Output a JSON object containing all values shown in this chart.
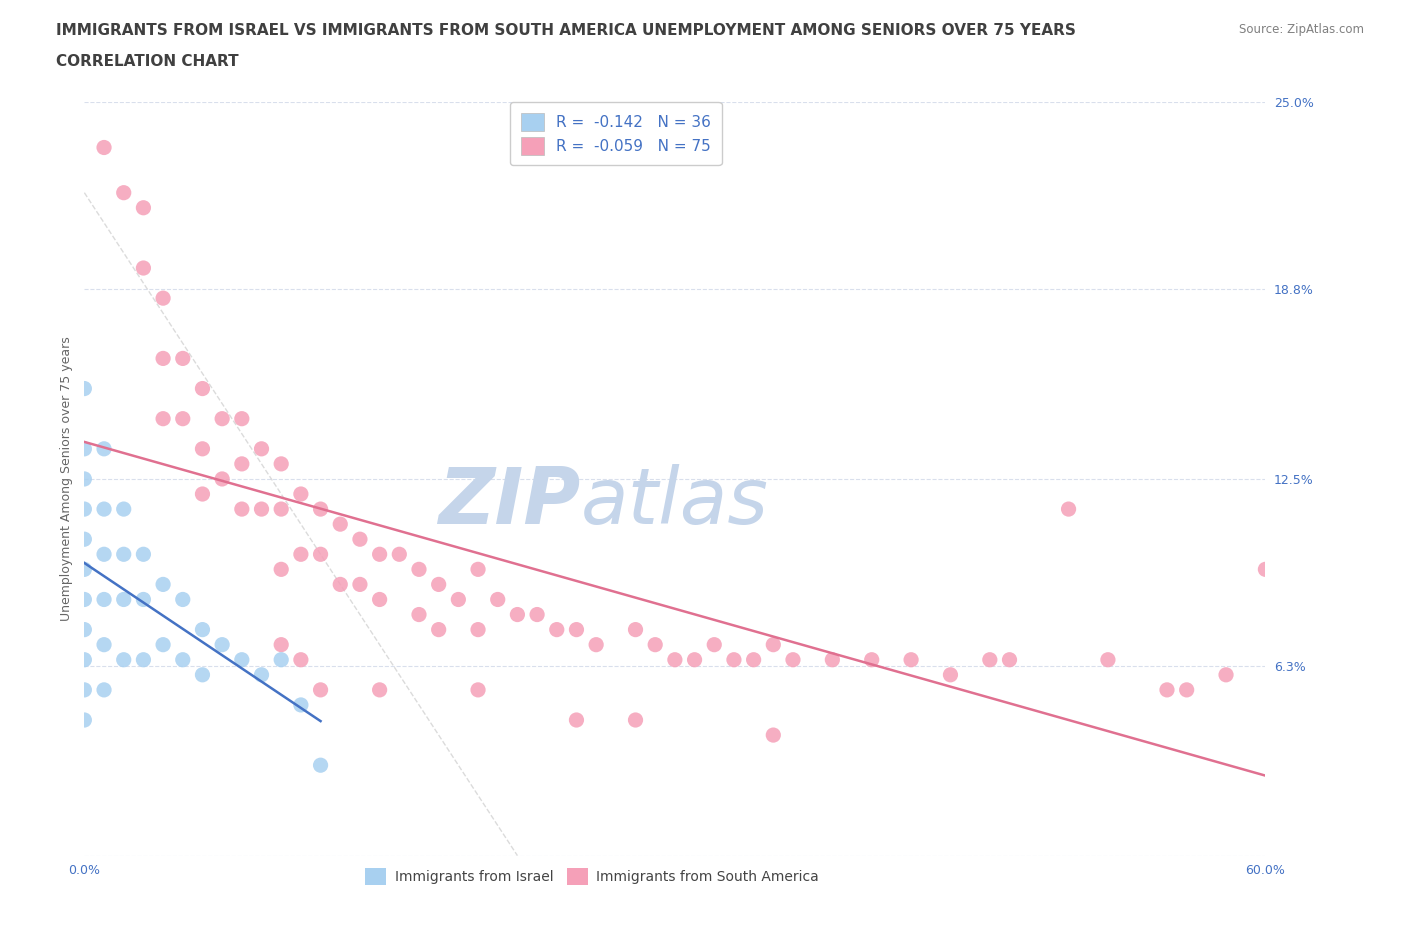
{
  "title_line1": "IMMIGRANTS FROM ISRAEL VS IMMIGRANTS FROM SOUTH AMERICA UNEMPLOYMENT AMONG SENIORS OVER 75 YEARS",
  "title_line2": "CORRELATION CHART",
  "source_text": "Source: ZipAtlas.com",
  "ylabel": "Unemployment Among Seniors over 75 years",
  "xmin": 0.0,
  "xmax": 0.6,
  "ymin": 0.0,
  "ymax": 0.25,
  "yticks": [
    0.0,
    0.063,
    0.125,
    0.188,
    0.25
  ],
  "ytick_labels": [
    "",
    "6.3%",
    "12.5%",
    "18.8%",
    "25.0%"
  ],
  "xticks": [
    0.0,
    0.1,
    0.2,
    0.3,
    0.4,
    0.5,
    0.6
  ],
  "xtick_labels": [
    "0.0%",
    "",
    "",
    "",
    "",
    "",
    "60.0%"
  ],
  "israel_color": "#a8d0f0",
  "south_america_color": "#f5a0b8",
  "israel_R": -0.142,
  "israel_N": 36,
  "south_america_R": -0.059,
  "south_america_N": 75,
  "legend_label_israel": "Immigrants from Israel",
  "legend_label_sa": "Immigrants from South America",
  "watermark_zip": "ZIP",
  "watermark_atlas": "atlas",
  "israel_scatter_x": [
    0.0,
    0.0,
    0.0,
    0.0,
    0.0,
    0.0,
    0.0,
    0.0,
    0.0,
    0.0,
    0.0,
    0.01,
    0.01,
    0.01,
    0.01,
    0.01,
    0.01,
    0.02,
    0.02,
    0.02,
    0.02,
    0.03,
    0.03,
    0.03,
    0.04,
    0.04,
    0.05,
    0.05,
    0.06,
    0.06,
    0.07,
    0.08,
    0.09,
    0.1,
    0.11,
    0.12
  ],
  "israel_scatter_y": [
    0.155,
    0.135,
    0.125,
    0.115,
    0.105,
    0.095,
    0.085,
    0.075,
    0.065,
    0.055,
    0.045,
    0.135,
    0.115,
    0.1,
    0.085,
    0.07,
    0.055,
    0.115,
    0.1,
    0.085,
    0.065,
    0.1,
    0.085,
    0.065,
    0.09,
    0.07,
    0.085,
    0.065,
    0.075,
    0.06,
    0.07,
    0.065,
    0.06,
    0.065,
    0.05,
    0.03
  ],
  "sa_scatter_x": [
    0.01,
    0.02,
    0.03,
    0.03,
    0.04,
    0.04,
    0.04,
    0.05,
    0.05,
    0.06,
    0.06,
    0.06,
    0.07,
    0.07,
    0.08,
    0.08,
    0.08,
    0.09,
    0.09,
    0.1,
    0.1,
    0.1,
    0.11,
    0.11,
    0.12,
    0.12,
    0.13,
    0.13,
    0.14,
    0.14,
    0.15,
    0.15,
    0.16,
    0.17,
    0.17,
    0.18,
    0.18,
    0.19,
    0.2,
    0.2,
    0.21,
    0.22,
    0.23,
    0.24,
    0.25,
    0.26,
    0.28,
    0.29,
    0.3,
    0.31,
    0.32,
    0.33,
    0.34,
    0.35,
    0.36,
    0.38,
    0.4,
    0.42,
    0.44,
    0.46,
    0.47,
    0.5,
    0.52,
    0.55,
    0.56,
    0.58,
    0.6,
    0.1,
    0.11,
    0.12,
    0.15,
    0.2,
    0.25,
    0.28,
    0.35
  ],
  "sa_scatter_y": [
    0.235,
    0.22,
    0.215,
    0.195,
    0.185,
    0.165,
    0.145,
    0.165,
    0.145,
    0.155,
    0.135,
    0.12,
    0.145,
    0.125,
    0.145,
    0.13,
    0.115,
    0.135,
    0.115,
    0.13,
    0.115,
    0.095,
    0.12,
    0.1,
    0.115,
    0.1,
    0.11,
    0.09,
    0.105,
    0.09,
    0.1,
    0.085,
    0.1,
    0.095,
    0.08,
    0.09,
    0.075,
    0.085,
    0.095,
    0.075,
    0.085,
    0.08,
    0.08,
    0.075,
    0.075,
    0.07,
    0.075,
    0.07,
    0.065,
    0.065,
    0.07,
    0.065,
    0.065,
    0.07,
    0.065,
    0.065,
    0.065,
    0.065,
    0.06,
    0.065,
    0.065,
    0.115,
    0.065,
    0.055,
    0.055,
    0.06,
    0.095,
    0.07,
    0.065,
    0.055,
    0.055,
    0.055,
    0.045,
    0.045,
    0.04
  ],
  "title_fontsize": 11,
  "axis_label_fontsize": 9,
  "tick_fontsize": 9,
  "tick_color": "#4472c4",
  "title_color": "#404040",
  "source_color": "#808080",
  "reg_color_israel": "#4472c4",
  "reg_color_sa": "#e07090",
  "watermark_color_zip": "#c8d8ec",
  "watermark_color_atlas": "#c8d8ec",
  "background_color": "#ffffff",
  "grid_color": "#d0d8e8",
  "diag_line_color": "#cccccc"
}
